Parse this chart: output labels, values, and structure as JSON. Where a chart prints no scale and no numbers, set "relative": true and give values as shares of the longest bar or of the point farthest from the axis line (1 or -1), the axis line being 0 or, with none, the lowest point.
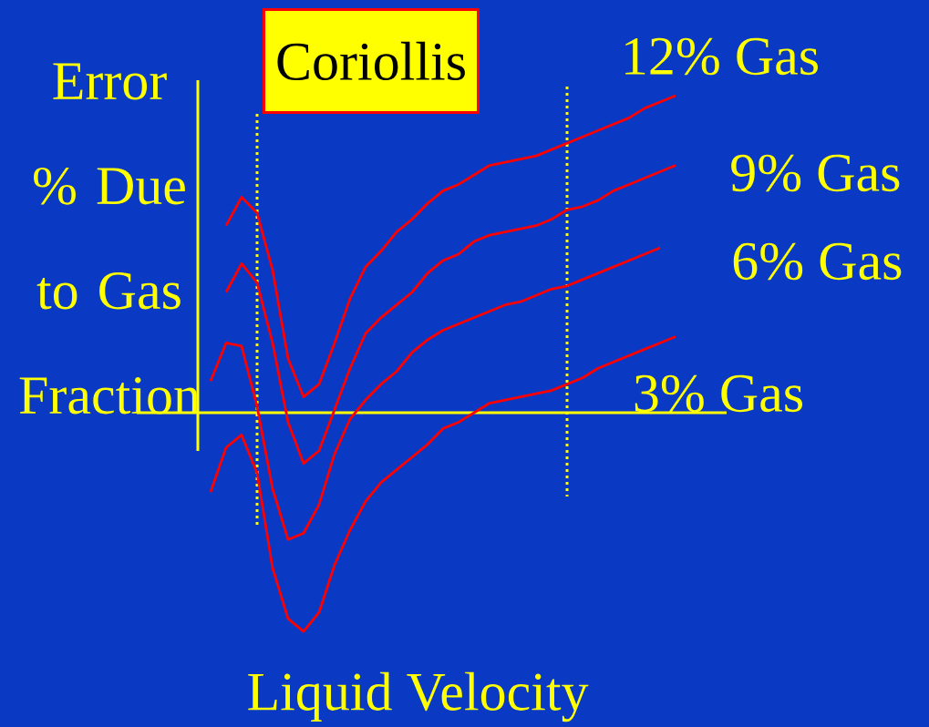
{
  "chart_data": {
    "type": "line",
    "relative": true,
    "title": "Coriollis",
    "xlabel": "Liquid Velocity",
    "ylabel": "Error % Due to Gas Fraction",
    "categories": [
      null,
      null,
      null,
      null,
      null,
      null,
      null,
      null,
      null,
      null,
      null,
      null,
      null,
      null,
      null,
      null,
      null,
      null,
      null,
      null,
      null,
      null,
      null,
      null,
      null,
      null,
      null,
      null,
      null,
      null,
      null
    ],
    "series": [
      {
        "name": "12% Gas",
        "color": "#ff0000",
        "values": [
          null,
          0.59,
          0.68,
          0.63,
          0.45,
          0.17,
          0.05,
          0.09,
          0.22,
          0.36,
          0.46,
          0.51,
          0.57,
          0.61,
          0.66,
          0.7,
          0.72,
          0.75,
          0.78,
          0.79,
          0.8,
          0.81,
          0.83,
          0.85,
          0.87,
          0.89,
          0.91,
          0.93,
          0.96,
          0.98,
          1.0
        ]
      },
      {
        "name": "9% Gas",
        "color": "#ff0000",
        "values": [
          null,
          0.38,
          0.47,
          0.41,
          0.22,
          -0.03,
          -0.16,
          -0.12,
          0.01,
          0.14,
          0.25,
          0.3,
          0.34,
          0.38,
          0.44,
          0.48,
          0.5,
          0.54,
          0.56,
          0.57,
          0.58,
          0.59,
          0.61,
          0.64,
          0.65,
          0.67,
          0.7,
          0.72,
          0.74,
          0.76,
          0.78
        ]
      },
      {
        "name": "6% Gas",
        "color": "#ff0000",
        "values": [
          0.1,
          0.22,
          0.21,
          0.02,
          -0.24,
          -0.4,
          -0.38,
          -0.29,
          -0.13,
          -0.02,
          0.04,
          0.09,
          0.13,
          0.19,
          0.23,
          0.26,
          0.28,
          0.3,
          0.32,
          0.34,
          0.35,
          0.37,
          0.39,
          0.4,
          0.42,
          0.44,
          0.46,
          0.48,
          0.5,
          0.52,
          null
        ]
      },
      {
        "name": "3% Gas",
        "color": "#ff0000",
        "values": [
          -0.25,
          -0.11,
          -0.07,
          -0.19,
          -0.49,
          -0.65,
          -0.69,
          -0.63,
          -0.48,
          -0.37,
          -0.28,
          -0.22,
          -0.18,
          -0.14,
          -0.1,
          -0.05,
          -0.03,
          0.0,
          0.03,
          0.04,
          0.05,
          0.06,
          0.07,
          0.09,
          0.11,
          0.14,
          0.16,
          0.18,
          0.2,
          0.22,
          0.24
        ]
      }
    ],
    "ref_lines": [
      {
        "axis": "y",
        "value": 0,
        "color": "#ffff00",
        "line_style": "solid"
      }
    ]
  }
}
